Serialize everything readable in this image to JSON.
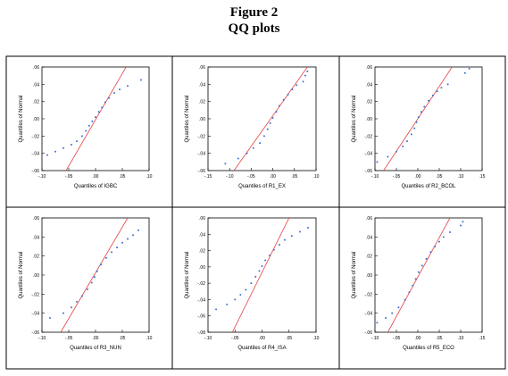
{
  "figure": {
    "title": "Figure 2",
    "subtitle": "QQ plots"
  },
  "colors": {
    "points": "#3b6fd6",
    "line": "#e64040",
    "frame": "#000000"
  },
  "chart_data": [
    {
      "type": "scatter",
      "panel": 1,
      "xlabel": "Quantiles of IGBC",
      "ylabel": "Quantiles of Normal",
      "xlim": [
        -0.1,
        0.1
      ],
      "ylim": [
        -0.06,
        0.06
      ],
      "xticks": [
        -0.1,
        -0.05,
        0.0,
        0.05,
        0.1
      ],
      "xtick_labels": [
        "-.10",
        "-.05",
        ".00",
        ".05",
        ".10"
      ],
      "yticks": [
        0.06,
        0.04,
        0.02,
        0.0,
        -0.02,
        -0.04,
        -0.06
      ],
      "ytick_labels": [
        ".06",
        ".04",
        ".02",
        ".00",
        "-.02",
        "-.04",
        "-.06"
      ],
      "ref_line": [
        [
          -0.055,
          -0.06
        ],
        [
          0.057,
          0.06
        ]
      ],
      "points": [
        [
          -0.09,
          -0.042
        ],
        [
          -0.075,
          -0.038
        ],
        [
          -0.06,
          -0.034
        ],
        [
          -0.045,
          -0.03
        ],
        [
          -0.035,
          -0.026
        ],
        [
          -0.025,
          -0.02
        ],
        [
          -0.018,
          -0.014
        ],
        [
          -0.012,
          -0.008
        ],
        [
          -0.006,
          -0.003
        ],
        [
          0.0,
          0.002
        ],
        [
          0.006,
          0.008
        ],
        [
          0.012,
          0.013
        ],
        [
          0.018,
          0.019
        ],
        [
          0.025,
          0.024
        ],
        [
          0.035,
          0.03
        ],
        [
          0.045,
          0.034
        ],
        [
          0.06,
          0.038
        ],
        [
          0.085,
          0.045
        ]
      ]
    },
    {
      "type": "scatter",
      "panel": 2,
      "xlabel": "Quantiles of R1_EX",
      "ylabel": "Quantiles of Normal",
      "xlim": [
        -0.15,
        0.1
      ],
      "ylim": [
        -0.06,
        0.06
      ],
      "xticks": [
        -0.15,
        -0.1,
        -0.05,
        0.0,
        0.05,
        0.1
      ],
      "xtick_labels": [
        "-.15",
        "-.10",
        "-.05",
        ".00",
        ".05",
        ".10"
      ],
      "yticks": [
        0.06,
        0.04,
        0.02,
        0.0,
        -0.02,
        -0.04,
        -0.06
      ],
      "ytick_labels": [
        ".06",
        ".04",
        ".02",
        ".00",
        "-.02",
        "-.04",
        "-.06"
      ],
      "ref_line": [
        [
          -0.09,
          -0.06
        ],
        [
          0.08,
          0.06
        ]
      ],
      "points": [
        [
          -0.11,
          -0.052
        ],
        [
          -0.08,
          -0.046
        ],
        [
          -0.06,
          -0.04
        ],
        [
          -0.045,
          -0.034
        ],
        [
          -0.03,
          -0.028
        ],
        [
          -0.02,
          -0.02
        ],
        [
          -0.012,
          -0.012
        ],
        [
          -0.006,
          -0.005
        ],
        [
          0.0,
          0.001
        ],
        [
          0.008,
          0.008
        ],
        [
          0.015,
          0.015
        ],
        [
          0.025,
          0.022
        ],
        [
          0.035,
          0.028
        ],
        [
          0.045,
          0.034
        ],
        [
          0.055,
          0.039
        ],
        [
          0.07,
          0.043
        ],
        [
          0.075,
          0.05
        ],
        [
          0.08,
          0.055
        ]
      ]
    },
    {
      "type": "scatter",
      "panel": 3,
      "xlabel": "Quantiles of R2_BCOL",
      "ylabel": "Quantiles of Normal",
      "xlim": [
        -0.1,
        0.15
      ],
      "ylim": [
        -0.06,
        0.06
      ],
      "xticks": [
        -0.1,
        -0.05,
        0.0,
        0.05,
        0.1,
        0.15
      ],
      "xtick_labels": [
        "-.10",
        "-.05",
        ".00",
        ".05",
        ".10",
        ".15"
      ],
      "yticks": [
        0.06,
        0.04,
        0.02,
        0.0,
        -0.02,
        -0.04,
        -0.06
      ],
      "ytick_labels": [
        ".06",
        ".04",
        ".02",
        ".00",
        "-.02",
        "-.04",
        "-.06"
      ],
      "ref_line": [
        [
          -0.08,
          -0.06
        ],
        [
          0.08,
          0.06
        ]
      ],
      "points": [
        [
          -0.095,
          -0.05
        ],
        [
          -0.07,
          -0.044
        ],
        [
          -0.05,
          -0.038
        ],
        [
          -0.035,
          -0.032
        ],
        [
          -0.025,
          -0.026
        ],
        [
          -0.015,
          -0.018
        ],
        [
          -0.008,
          -0.011
        ],
        [
          -0.003,
          -0.004
        ],
        [
          0.002,
          0.002
        ],
        [
          0.008,
          0.008
        ],
        [
          0.015,
          0.014
        ],
        [
          0.025,
          0.021
        ],
        [
          0.035,
          0.027
        ],
        [
          0.045,
          0.032
        ],
        [
          0.055,
          0.036
        ],
        [
          0.07,
          0.04
        ],
        [
          0.11,
          0.053
        ],
        [
          0.12,
          0.058
        ]
      ]
    },
    {
      "type": "scatter",
      "panel": 4,
      "xlabel": "Quantiles of R3_NUN",
      "ylabel": "Quantiles of Normal",
      "xlim": [
        -0.1,
        0.1
      ],
      "ylim": [
        -0.06,
        0.06
      ],
      "xticks": [
        -0.1,
        -0.05,
        0.0,
        0.05,
        0.1
      ],
      "xtick_labels": [
        "-.10",
        "-.05",
        ".00",
        ".05",
        ".10"
      ],
      "yticks": [
        0.06,
        0.04,
        0.02,
        0.0,
        -0.02,
        -0.04,
        -0.06
      ],
      "ytick_labels": [
        ".06",
        ".04",
        ".02",
        ".00",
        "-.02",
        "-.04",
        "-.06"
      ],
      "ref_line": [
        [
          -0.065,
          -0.06
        ],
        [
          0.06,
          0.06
        ]
      ],
      "points": [
        [
          -0.085,
          -0.045
        ],
        [
          -0.06,
          -0.04
        ],
        [
          -0.045,
          -0.034
        ],
        [
          -0.035,
          -0.028
        ],
        [
          -0.025,
          -0.022
        ],
        [
          -0.015,
          -0.015
        ],
        [
          -0.007,
          -0.008
        ],
        [
          -0.002,
          -0.002
        ],
        [
          0.003,
          0.004
        ],
        [
          0.01,
          0.011
        ],
        [
          0.02,
          0.018
        ],
        [
          0.03,
          0.024
        ],
        [
          0.04,
          0.029
        ],
        [
          0.05,
          0.034
        ],
        [
          0.06,
          0.038
        ],
        [
          0.07,
          0.042
        ],
        [
          0.08,
          0.047
        ]
      ]
    },
    {
      "type": "scatter",
      "panel": 5,
      "xlabel": "Quantiles of R4_ISA",
      "ylabel": "Quantiles of Normal",
      "xlim": [
        -0.1,
        0.1
      ],
      "ylim": [
        -0.08,
        0.06
      ],
      "xticks": [
        -0.1,
        -0.05,
        0.0,
        0.05,
        0.1
      ],
      "xtick_labels": [
        "-.10",
        "-.05",
        ".00",
        ".05",
        ".10"
      ],
      "yticks": [
        0.06,
        0.04,
        0.02,
        0.0,
        -0.02,
        -0.04,
        -0.06,
        -0.08
      ],
      "ytick_labels": [
        ".06",
        ".04",
        ".02",
        ".00",
        "-.02",
        "-.04",
        "-.06",
        "-.08"
      ],
      "ref_line": [
        [
          -0.055,
          -0.08
        ],
        [
          0.05,
          0.06
        ]
      ],
      "points": [
        [
          -0.085,
          -0.052
        ],
        [
          -0.065,
          -0.046
        ],
        [
          -0.05,
          -0.04
        ],
        [
          -0.04,
          -0.034
        ],
        [
          -0.03,
          -0.028
        ],
        [
          -0.02,
          -0.02
        ],
        [
          -0.012,
          -0.012
        ],
        [
          -0.005,
          -0.005
        ],
        [
          0.0,
          0.001
        ],
        [
          0.006,
          0.008
        ],
        [
          0.014,
          0.014
        ],
        [
          0.022,
          0.021
        ],
        [
          0.032,
          0.027
        ],
        [
          0.042,
          0.033
        ],
        [
          0.055,
          0.038
        ],
        [
          0.07,
          0.043
        ],
        [
          0.085,
          0.048
        ]
      ]
    },
    {
      "type": "scatter",
      "panel": 6,
      "xlabel": "Quantiles of R5_ECO",
      "ylabel": "Quantiles of Normal",
      "xlim": [
        -0.1,
        0.15
      ],
      "ylim": [
        -0.06,
        0.06
      ],
      "xticks": [
        -0.1,
        -0.05,
        0.0,
        0.05,
        0.1,
        0.15
      ],
      "xtick_labels": [
        "-.10",
        "-.05",
        ".00",
        ".05",
        ".10",
        ".15"
      ],
      "yticks": [
        0.06,
        0.04,
        0.02,
        0.0,
        -0.02,
        -0.04,
        -0.06
      ],
      "ytick_labels": [
        ".06",
        ".04",
        ".02",
        ".00",
        "-.02",
        "-.04",
        "-.06"
      ],
      "ref_line": [
        [
          -0.07,
          -0.06
        ],
        [
          0.075,
          0.06
        ]
      ],
      "points": [
        [
          -0.095,
          -0.05
        ],
        [
          -0.075,
          -0.045
        ],
        [
          -0.06,
          -0.04
        ],
        [
          -0.045,
          -0.034
        ],
        [
          -0.03,
          -0.026
        ],
        [
          -0.02,
          -0.018
        ],
        [
          -0.012,
          -0.011
        ],
        [
          -0.005,
          -0.004
        ],
        [
          0.002,
          0.003
        ],
        [
          0.01,
          0.01
        ],
        [
          0.02,
          0.017
        ],
        [
          0.03,
          0.024
        ],
        [
          0.04,
          0.03
        ],
        [
          0.05,
          0.035
        ],
        [
          0.06,
          0.04
        ],
        [
          0.075,
          0.045
        ],
        [
          0.1,
          0.052
        ],
        [
          0.105,
          0.056
        ]
      ]
    }
  ]
}
